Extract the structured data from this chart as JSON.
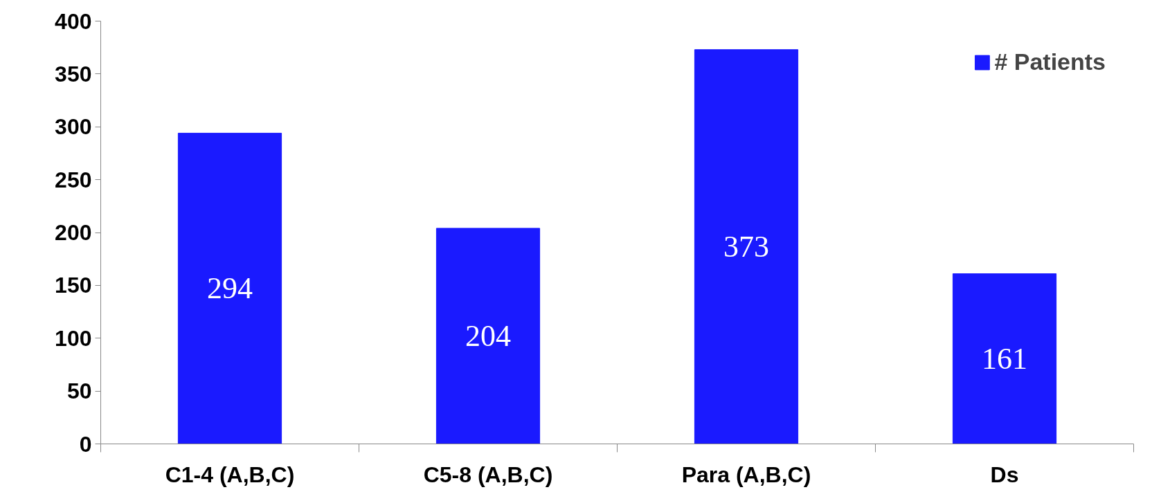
{
  "chart_data": {
    "type": "bar",
    "categories": [
      "C1-4 (A,B,C)",
      "C5-8 (A,B,C)",
      "Para (A,B,C)",
      "Ds"
    ],
    "series": [
      {
        "name": "# Patients",
        "color": "#1a1aff",
        "values": [
          294,
          204,
          373,
          161
        ]
      }
    ],
    "ylim": [
      0,
      400
    ],
    "yticks": [
      0,
      50,
      100,
      150,
      200,
      250,
      300,
      350,
      400
    ],
    "grid": false,
    "legend": "top right",
    "data_labels": true
  }
}
